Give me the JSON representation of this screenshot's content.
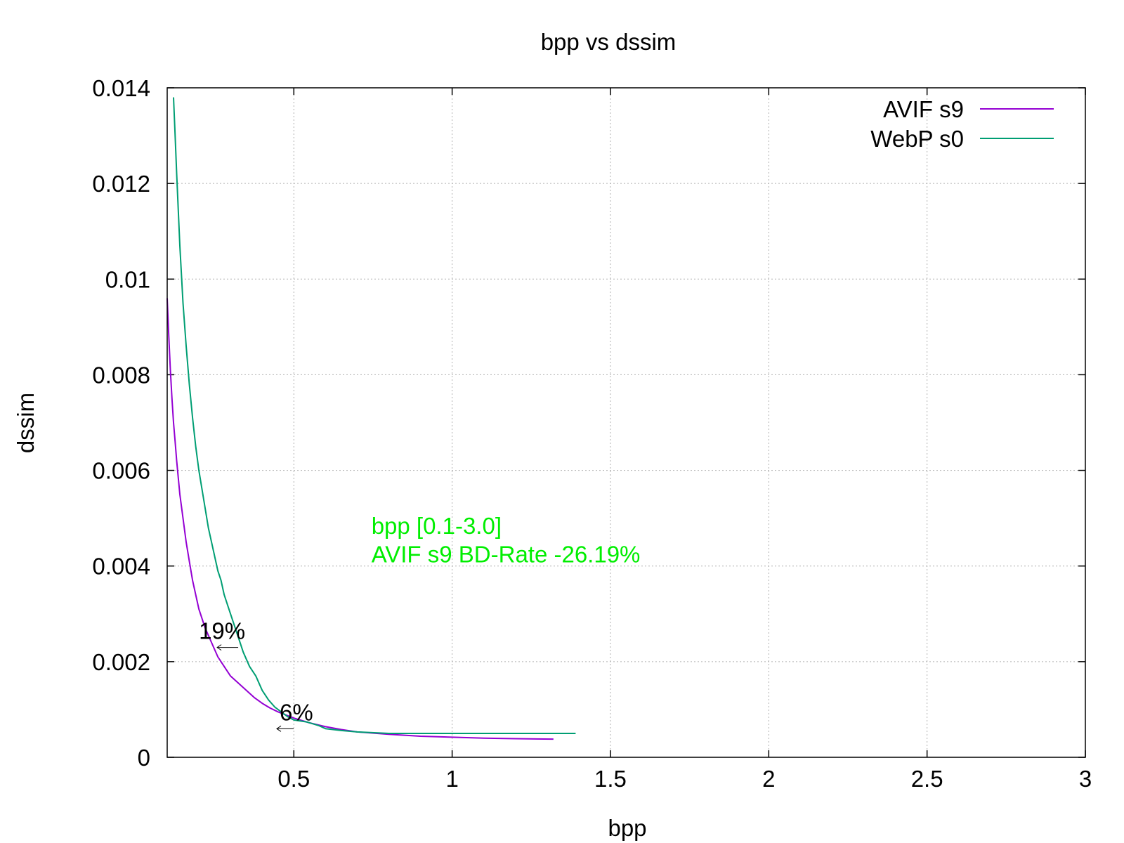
{
  "chart_data": {
    "type": "line",
    "title": "bpp vs dssim",
    "xlabel": "bpp",
    "ylabel": "dssim",
    "xlim": [
      0.1,
      3.0
    ],
    "ylim": [
      0,
      0.014
    ],
    "grid": true,
    "legend_position": "top-right",
    "x_ticks": [
      {
        "value": 0.5,
        "label": "0.5"
      },
      {
        "value": 1.0,
        "label": "1"
      },
      {
        "value": 1.5,
        "label": "1.5"
      },
      {
        "value": 2.0,
        "label": "2"
      },
      {
        "value": 2.5,
        "label": "2.5"
      },
      {
        "value": 3.0,
        "label": "3"
      }
    ],
    "y_ticks": [
      {
        "value": 0,
        "label": "0"
      },
      {
        "value": 0.002,
        "label": "0.002"
      },
      {
        "value": 0.004,
        "label": "0.004"
      },
      {
        "value": 0.006,
        "label": "0.006"
      },
      {
        "value": 0.008,
        "label": "0.008"
      },
      {
        "value": 0.01,
        "label": "0.01"
      },
      {
        "value": 0.012,
        "label": "0.012"
      },
      {
        "value": 0.014,
        "label": "0.014"
      }
    ],
    "series": [
      {
        "name": "AVIF s9",
        "color": "#9400d3",
        "points": [
          [
            0.1,
            0.0096
          ],
          [
            0.105,
            0.0088
          ],
          [
            0.11,
            0.0081
          ],
          [
            0.115,
            0.0075
          ],
          [
            0.12,
            0.007
          ],
          [
            0.125,
            0.0066
          ],
          [
            0.13,
            0.0062
          ],
          [
            0.14,
            0.0055
          ],
          [
            0.15,
            0.005
          ],
          [
            0.16,
            0.0045
          ],
          [
            0.17,
            0.0041
          ],
          [
            0.18,
            0.0037
          ],
          [
            0.19,
            0.0034
          ],
          [
            0.2,
            0.0031
          ],
          [
            0.21,
            0.0029
          ],
          [
            0.22,
            0.0027
          ],
          [
            0.24,
            0.0024
          ],
          [
            0.26,
            0.0021
          ],
          [
            0.28,
            0.0019
          ],
          [
            0.3,
            0.0017
          ],
          [
            0.325,
            0.00155
          ],
          [
            0.35,
            0.0014
          ],
          [
            0.375,
            0.00125
          ],
          [
            0.4,
            0.00113
          ],
          [
            0.425,
            0.00103
          ],
          [
            0.45,
            0.00095
          ],
          [
            0.5,
            0.00082
          ],
          [
            0.55,
            0.00072
          ],
          [
            0.6,
            0.00064
          ],
          [
            0.65,
            0.00058
          ],
          [
            0.7,
            0.00053
          ],
          [
            0.8,
            0.00048
          ],
          [
            0.9,
            0.00044
          ],
          [
            1.0,
            0.00042
          ],
          [
            1.1,
            0.0004
          ],
          [
            1.2,
            0.00039
          ],
          [
            1.32,
            0.00038
          ]
        ]
      },
      {
        "name": "WebP s0",
        "color": "#009e73",
        "points": [
          [
            0.12,
            0.0138
          ],
          [
            0.125,
            0.013
          ],
          [
            0.13,
            0.0122
          ],
          [
            0.14,
            0.0107
          ],
          [
            0.15,
            0.0095
          ],
          [
            0.16,
            0.0086
          ],
          [
            0.17,
            0.0078
          ],
          [
            0.18,
            0.0071
          ],
          [
            0.19,
            0.0065
          ],
          [
            0.2,
            0.006
          ],
          [
            0.21,
            0.0056
          ],
          [
            0.22,
            0.0052
          ],
          [
            0.23,
            0.0048
          ],
          [
            0.24,
            0.0045
          ],
          [
            0.25,
            0.0042
          ],
          [
            0.26,
            0.0039
          ],
          [
            0.27,
            0.0037
          ],
          [
            0.28,
            0.0034
          ],
          [
            0.29,
            0.0032
          ],
          [
            0.3,
            0.003
          ],
          [
            0.32,
            0.0026
          ],
          [
            0.34,
            0.0022
          ],
          [
            0.36,
            0.0019
          ],
          [
            0.38,
            0.0017
          ],
          [
            0.4,
            0.0014
          ],
          [
            0.42,
            0.0012
          ],
          [
            0.44,
            0.00105
          ],
          [
            0.46,
            0.00095
          ],
          [
            0.48,
            0.00085
          ],
          [
            0.5,
            0.00078
          ],
          [
            0.52,
            0.00076
          ],
          [
            0.54,
            0.00074
          ],
          [
            0.56,
            0.0007
          ],
          [
            0.58,
            0.00066
          ],
          [
            0.6,
            0.0006
          ],
          [
            0.65,
            0.00056
          ],
          [
            0.7,
            0.00053
          ],
          [
            0.8,
            0.0005
          ],
          [
            0.9,
            0.0005
          ],
          [
            1.0,
            0.0005
          ],
          [
            1.1,
            0.0005
          ],
          [
            1.2,
            0.0005
          ],
          [
            1.3,
            0.0005
          ],
          [
            1.39,
            0.0005
          ]
        ]
      }
    ],
    "annotations": [
      {
        "text": "19%",
        "x": 0.2,
        "y": 0.00265
      },
      {
        "text": "6%",
        "x": 0.455,
        "y": 0.00095
      }
    ],
    "bd_rate": {
      "range_text": "bpp [0.1-3.0]",
      "result_text": "AVIF s9 BD-Rate -26.19%",
      "color": "#00ee00",
      "x": 0.745,
      "y_line1": 0.00485,
      "y_line2": 0.00425
    }
  }
}
